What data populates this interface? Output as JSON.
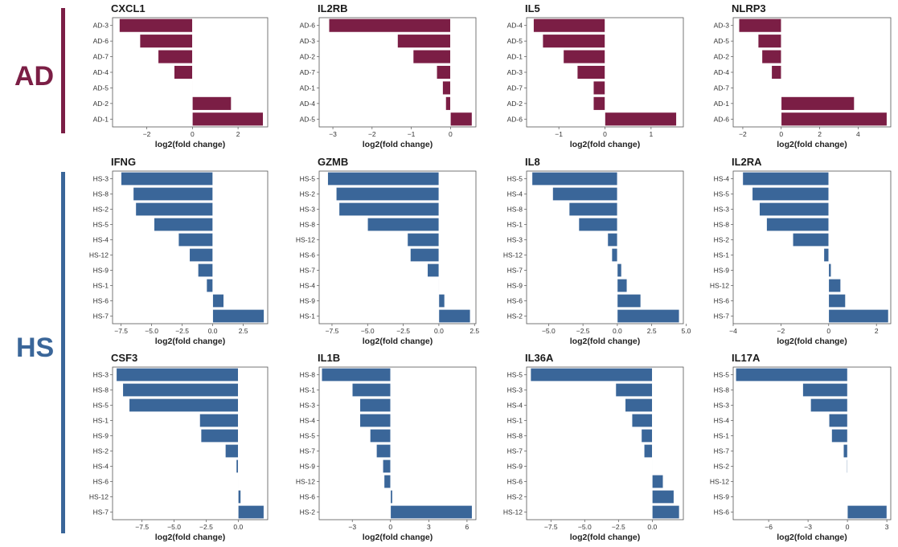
{
  "colors": {
    "ad": "#7b1e45",
    "hs": "#3a6699"
  },
  "groups": [
    {
      "label": "AD",
      "color": "#7b1e45"
    },
    {
      "label": "HS",
      "color": "#3a6699"
    }
  ],
  "chart_data": [
    {
      "type": "bar",
      "orientation": "horizontal",
      "title": "CXCL1",
      "xlabel": "log2(fold change)",
      "categories": [
        "AD-3",
        "AD-6",
        "AD-7",
        "AD-4",
        "AD-5",
        "AD-2",
        "AD-1"
      ],
      "values": [
        -3.2,
        -2.3,
        -1.5,
        -0.8,
        0.0,
        1.7,
        3.1
      ],
      "xlim": [
        -3.5,
        3.3
      ],
      "xticks": [
        -2,
        0,
        2
      ],
      "xtick_labels": [
        "−2",
        "0",
        "2"
      ]
    },
    {
      "type": "bar",
      "orientation": "horizontal",
      "title": "IL2RB",
      "xlabel": "log2(fold change)",
      "categories": [
        "AD-6",
        "AD-3",
        "AD-2",
        "AD-7",
        "AD-1",
        "AD-4",
        "AD-5"
      ],
      "values": [
        -3.1,
        -1.35,
        -0.95,
        -0.35,
        -0.2,
        -0.12,
        0.55
      ],
      "xlim": [
        -3.35,
        0.65
      ],
      "xticks": [
        -3,
        -2,
        -1,
        0
      ],
      "xtick_labels": [
        "−3",
        "−2",
        "−1",
        "0"
      ]
    },
    {
      "type": "bar",
      "orientation": "horizontal",
      "title": "IL5",
      "xlabel": "log2(fold change)",
      "categories": [
        "AD-4",
        "AD-5",
        "AD-1",
        "AD-3",
        "AD-7",
        "AD-2",
        "AD-6"
      ],
      "values": [
        -1.55,
        -1.35,
        -0.9,
        -0.6,
        -0.25,
        -0.25,
        1.55
      ],
      "xlim": [
        -1.7,
        1.7
      ],
      "xticks": [
        -1,
        0,
        1
      ],
      "xtick_labels": [
        "−1",
        "0",
        "1"
      ]
    },
    {
      "type": "bar",
      "orientation": "horizontal",
      "title": "NLRP3",
      "xlabel": "log2(fold change)",
      "categories": [
        "AD-3",
        "AD-5",
        "AD-2",
        "AD-4",
        "AD-7",
        "AD-1",
        "AD-6"
      ],
      "values": [
        -2.2,
        -1.2,
        -1.0,
        -0.5,
        0.0,
        3.8,
        5.5
      ],
      "xlim": [
        -2.5,
        5.7
      ],
      "xticks": [
        -2,
        0,
        2,
        4
      ],
      "xtick_labels": [
        "−2",
        "0",
        "2",
        "4"
      ]
    },
    {
      "type": "bar",
      "orientation": "horizontal",
      "title": "IFNG",
      "xlabel": "log2(fold change)",
      "categories": [
        "HS-3",
        "HS-8",
        "HS-2",
        "HS-5",
        "HS-4",
        "HS-12",
        "HS-9",
        "HS-1",
        "HS-6",
        "HS-7"
      ],
      "values": [
        -7.5,
        -6.5,
        -6.3,
        -4.8,
        -2.8,
        -1.9,
        -1.2,
        -0.5,
        0.9,
        4.2
      ],
      "xlim": [
        -8.2,
        4.5
      ],
      "xticks": [
        -7.5,
        -5,
        -2.5,
        0,
        2.5
      ],
      "xtick_labels": [
        "−7.5",
        "−5.0",
        "−2.5",
        "0.0",
        "2.5"
      ]
    },
    {
      "type": "bar",
      "orientation": "horizontal",
      "title": "GZMB",
      "xlabel": "log2(fold change)",
      "categories": [
        "HS-5",
        "HS-2",
        "HS-3",
        "HS-8",
        "HS-12",
        "HS-6",
        "HS-7",
        "HS-4",
        "HS-9",
        "HS-1"
      ],
      "values": [
        -7.8,
        -7.2,
        -7.0,
        -5.0,
        -2.2,
        -2.0,
        -0.8,
        0.0,
        0.4,
        2.2
      ],
      "xlim": [
        -8.4,
        2.6
      ],
      "xticks": [
        -7.5,
        -5,
        -2.5,
        0,
        2.5
      ],
      "xtick_labels": [
        "−7.5",
        "−5.0",
        "−2.5",
        "0.0",
        "2.5"
      ]
    },
    {
      "type": "bar",
      "orientation": "horizontal",
      "title": "IL8",
      "xlabel": "log2(fold change)",
      "categories": [
        "HS-5",
        "HS-4",
        "HS-8",
        "HS-1",
        "HS-3",
        "HS-12",
        "HS-7",
        "HS-9",
        "HS-6",
        "HS-2"
      ],
      "values": [
        -6.2,
        -4.7,
        -3.5,
        -2.8,
        -0.7,
        -0.4,
        0.3,
        0.7,
        1.7,
        4.5
      ],
      "xlim": [
        -6.6,
        4.8
      ],
      "xticks": [
        -5,
        -2.5,
        0,
        2.5,
        5
      ],
      "xtick_labels": [
        "−5.0",
        "−2.5",
        "0.0",
        "2.5",
        "5.0"
      ]
    },
    {
      "type": "bar",
      "orientation": "horizontal",
      "title": "IL2RA",
      "xlabel": "log2(fold change)",
      "categories": [
        "HS-4",
        "HS-5",
        "HS-3",
        "HS-8",
        "HS-2",
        "HS-1",
        "HS-9",
        "HS-12",
        "HS-6",
        "HS-7"
      ],
      "values": [
        -3.6,
        -3.2,
        -2.9,
        -2.6,
        -1.5,
        -0.2,
        0.1,
        0.5,
        0.7,
        2.5
      ],
      "xlim": [
        -4.0,
        2.6
      ],
      "xticks": [
        -4,
        -2,
        0,
        2
      ],
      "xtick_labels": [
        "−4",
        "−2",
        "0",
        "2"
      ]
    },
    {
      "type": "bar",
      "orientation": "horizontal",
      "title": "CSF3",
      "xlabel": "log2(fold change)",
      "categories": [
        "HS-3",
        "HS-8",
        "HS-5",
        "HS-1",
        "HS-9",
        "HS-2",
        "HS-4",
        "HS-6",
        "HS-12",
        "HS-7"
      ],
      "values": [
        -9.5,
        -9.0,
        -8.5,
        -3.0,
        -2.9,
        -1.0,
        -0.15,
        0.0,
        0.2,
        2.0
      ],
      "xlim": [
        -9.8,
        2.3
      ],
      "xticks": [
        -7.5,
        -5,
        -2.5,
        0
      ],
      "xtick_labels": [
        "−7.5",
        "−5.0",
        "−2.5",
        "0.0"
      ]
    },
    {
      "type": "bar",
      "orientation": "horizontal",
      "title": "IL1B",
      "xlabel": "log2(fold change)",
      "categories": [
        "HS-8",
        "HS-1",
        "HS-3",
        "HS-4",
        "HS-5",
        "HS-7",
        "HS-9",
        "HS-12",
        "HS-6",
        "HS-2"
      ],
      "values": [
        -5.4,
        -3.0,
        -2.4,
        -2.4,
        -1.6,
        -1.1,
        -0.6,
        -0.5,
        0.15,
        6.4
      ],
      "xlim": [
        -5.6,
        6.7
      ],
      "xticks": [
        -3,
        0,
        3,
        6
      ],
      "xtick_labels": [
        "−3",
        "0",
        "3",
        "6"
      ]
    },
    {
      "type": "bar",
      "orientation": "horizontal",
      "title": "IL36A",
      "xlabel": "log2(fold change)",
      "categories": [
        "HS-5",
        "HS-3",
        "HS-4",
        "HS-1",
        "HS-8",
        "HS-7",
        "HS-9",
        "HS-6",
        "HS-2",
        "HS-12"
      ],
      "values": [
        -9.0,
        -2.7,
        -2.0,
        -1.5,
        -0.8,
        -0.6,
        0.0,
        0.8,
        1.6,
        2.0
      ],
      "xlim": [
        -9.3,
        2.3
      ],
      "xticks": [
        -7.5,
        -5,
        -2.5,
        0
      ],
      "xtick_labels": [
        "−7.5",
        "−5.0",
        "−2.5",
        "0.0"
      ]
    },
    {
      "type": "bar",
      "orientation": "horizontal",
      "title": "IL17A",
      "xlabel": "log2(fold change)",
      "categories": [
        "HS-5",
        "HS-8",
        "HS-3",
        "HS-4",
        "HS-1",
        "HS-7",
        "HS-2",
        "HS-12",
        "HS-9",
        "HS-6"
      ],
      "values": [
        -8.5,
        -3.4,
        -2.8,
        -1.4,
        -1.2,
        -0.3,
        -0.05,
        0.0,
        0.0,
        3.0
      ],
      "xlim": [
        -8.7,
        3.3
      ],
      "xticks": [
        -6,
        -3,
        0,
        3
      ],
      "xtick_labels": [
        "−6",
        "−3",
        "0",
        "3"
      ]
    }
  ]
}
